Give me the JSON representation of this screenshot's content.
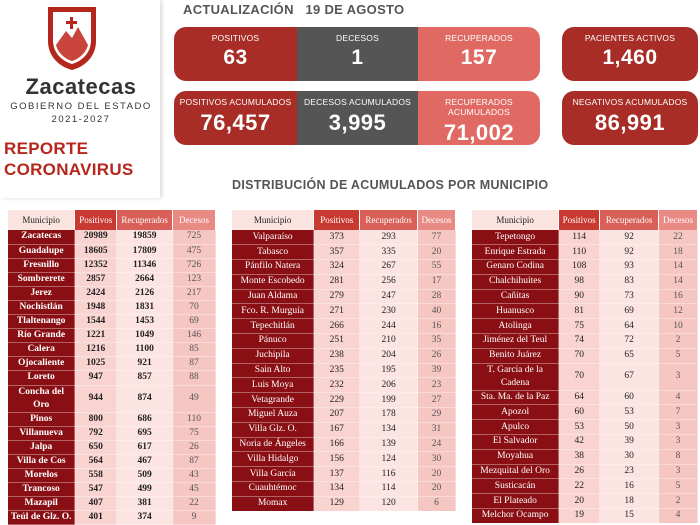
{
  "brand": {
    "name": "Zacatecas",
    "subtitle": "GOBIERNO DEL ESTADO",
    "years": "2021-2027"
  },
  "report": {
    "line1": "REPORTE",
    "line2": "CORONAVIRUS"
  },
  "update": "ACTUALIZACIÓN   19 DE AGOSTO",
  "stats": {
    "positivos": {
      "label": "POSITIVOS",
      "value": "63"
    },
    "decesos": {
      "label": "DECESOS",
      "value": "1"
    },
    "recuperados": {
      "label": "RECUPERADOS",
      "value": "157"
    },
    "activos": {
      "label": "PACIENTES ACTIVOS",
      "value": "1,460"
    },
    "pos_acum": {
      "label": "POSITIVOS ACUMULADOS",
      "value": "76,457"
    },
    "dec_acum": {
      "label": "DECESOS ACUMULADOS",
      "value": "3,995"
    },
    "rec_acum": {
      "label": "RECUPERADOS ACUMULADOS",
      "value": "71,002"
    },
    "neg_acum": {
      "label": "NEGATIVOS ACUMULADOS",
      "value": "86,991"
    }
  },
  "section_title": "DISTRIBUCIÓN DE ACUMULADOS POR MUNICIPIO",
  "headers": [
    "Municipio",
    "Positivos",
    "Recuperados",
    "Decesos"
  ],
  "tables": [
    [
      [
        "Zacatecas",
        "20989",
        "19859",
        "725"
      ],
      [
        "Guadalupe",
        "18605",
        "17809",
        "475"
      ],
      [
        "Fresnillo",
        "12352",
        "11346",
        "726"
      ],
      [
        "Sombrerete",
        "2857",
        "2664",
        "123"
      ],
      [
        "Jerez",
        "2424",
        "2126",
        "217"
      ],
      [
        "Nochistlán",
        "1948",
        "1831",
        "70"
      ],
      [
        "Tlaltenango",
        "1544",
        "1453",
        "69"
      ],
      [
        "Río Grande",
        "1221",
        "1049",
        "146"
      ],
      [
        "Calera",
        "1216",
        "1100",
        "85"
      ],
      [
        "Ojocaliente",
        "1025",
        "921",
        "87"
      ],
      [
        "Loreto",
        "947",
        "857",
        "88"
      ],
      [
        "Concha del Oro",
        "944",
        "874",
        "49"
      ],
      [
        "Pinos",
        "800",
        "686",
        "110"
      ],
      [
        "Villanueva",
        "792",
        "695",
        "75"
      ],
      [
        "Jalpa",
        "650",
        "617",
        "26"
      ],
      [
        "Villa de Cos",
        "564",
        "467",
        "87"
      ],
      [
        "Morelos",
        "558",
        "509",
        "43"
      ],
      [
        "Trancoso",
        "547",
        "499",
        "45"
      ],
      [
        "Mazapil",
        "407",
        "381",
        "22"
      ],
      [
        "Teúl de Glz. O.",
        "401",
        "374",
        "9"
      ]
    ],
    [
      [
        "Valparaíso",
        "373",
        "293",
        "77"
      ],
      [
        "Tabasco",
        "357",
        "335",
        "20"
      ],
      [
        "Pánfilo Natera",
        "324",
        "267",
        "55"
      ],
      [
        "Monte Escobedo",
        "281",
        "256",
        "17"
      ],
      [
        "Juan Aldama",
        "279",
        "247",
        "28"
      ],
      [
        "Fco. R. Murguía",
        "271",
        "230",
        "40"
      ],
      [
        "Tepechitlán",
        "266",
        "244",
        "16"
      ],
      [
        "Pánuco",
        "251",
        "210",
        "35"
      ],
      [
        "Juchipila",
        "238",
        "204",
        "26"
      ],
      [
        "Sain Alto",
        "235",
        "195",
        "39"
      ],
      [
        "Luis Moya",
        "232",
        "206",
        "23"
      ],
      [
        "Vetagrande",
        "229",
        "199",
        "27"
      ],
      [
        "Miguel Auza",
        "207",
        "178",
        "29"
      ],
      [
        "Villa Glz. O.",
        "167",
        "134",
        "31"
      ],
      [
        "Noria de Ángeles",
        "166",
        "139",
        "24"
      ],
      [
        "Villa Hidalgo",
        "156",
        "124",
        "30"
      ],
      [
        "Villa García",
        "137",
        "116",
        "20"
      ],
      [
        "Cuauhtémoc",
        "134",
        "114",
        "20"
      ],
      [
        "Momax",
        "129",
        "120",
        "6"
      ]
    ],
    [
      [
        "Tepetongo",
        "114",
        "92",
        "22"
      ],
      [
        "Enrique Estrada",
        "110",
        "92",
        "18"
      ],
      [
        "Genaro Codina",
        "108",
        "93",
        "14"
      ],
      [
        "Chalchihuites",
        "98",
        "83",
        "14"
      ],
      [
        "Cañitas",
        "90",
        "73",
        "16"
      ],
      [
        "Huanusco",
        "81",
        "69",
        "12"
      ],
      [
        "Atolinga",
        "75",
        "64",
        "10"
      ],
      [
        "Jiménez del Teul",
        "74",
        "72",
        "2"
      ],
      [
        "Benito Juárez",
        "70",
        "65",
        "5"
      ],
      [
        "T. García de la Cadena",
        "70",
        "67",
        "3"
      ],
      [
        "Sta. Ma. de la Paz",
        "64",
        "60",
        "4"
      ],
      [
        "Apozol",
        "60",
        "53",
        "7"
      ],
      [
        "Apulco",
        "53",
        "50",
        "3"
      ],
      [
        "El Salvador",
        "42",
        "39",
        "3"
      ],
      [
        "Moyahua",
        "38",
        "30",
        "8"
      ],
      [
        "Mezquital del Oro",
        "26",
        "23",
        "3"
      ],
      [
        "Susticacán",
        "22",
        "16",
        "5"
      ],
      [
        "El Plateado",
        "20",
        "18",
        "2"
      ],
      [
        "Melchor Ocampo",
        "19",
        "15",
        "4"
      ]
    ]
  ],
  "colors": {
    "accent_dark": "#a72d26",
    "accent_mid": "#c9453b",
    "grey": "#555555",
    "row_dark": "#8a0f14"
  }
}
